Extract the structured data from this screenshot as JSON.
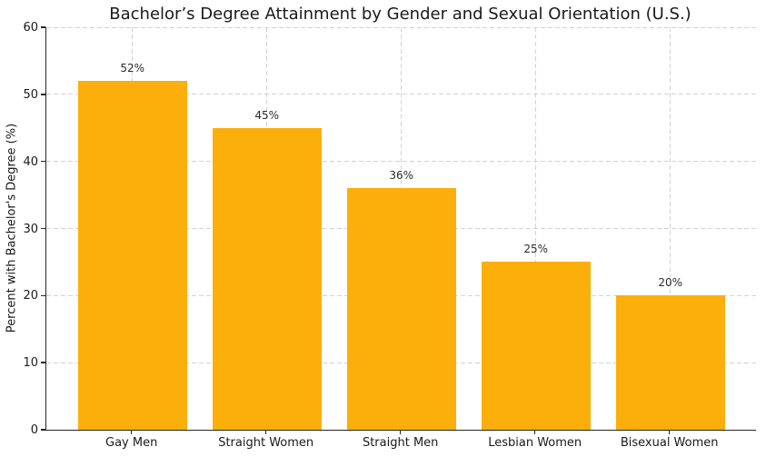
{
  "chart_data": {
    "type": "bar",
    "title": "Bachelor’s Degree Attainment by Gender and Sexual Orientation (U.S.)",
    "categories": [
      "Gay Men",
      "Straight Women",
      "Straight Men",
      "Lesbian Women",
      "Bisexual Women"
    ],
    "values": [
      52,
      45,
      36,
      25,
      20
    ],
    "value_labels": [
      "52%",
      "45%",
      "36%",
      "25%",
      "20%"
    ],
    "xlabel": "",
    "ylabel": "Percent with Bachelor's Degree (%)",
    "ylim": [
      0,
      60
    ],
    "yticks": [
      0,
      10,
      20,
      30,
      40,
      50,
      60
    ],
    "grid": "dashed, both axes, below bars",
    "legend": "none",
    "colors": {
      "bar": "#FCAF0A",
      "grid": "#d2d2d2",
      "spine": "#262626",
      "text": "#1a1a1a",
      "background": "#ffffff"
    }
  }
}
